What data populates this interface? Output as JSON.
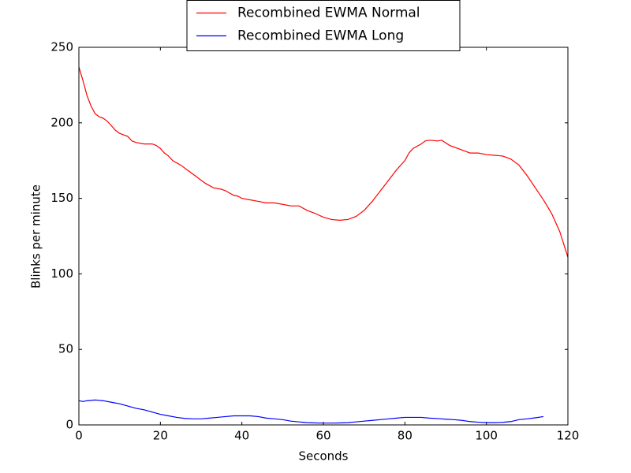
{
  "chart_data": {
    "type": "line",
    "xlabel": "Seconds",
    "ylabel": "Blinks per minute",
    "xlim": [
      0,
      120
    ],
    "ylim": [
      0,
      250
    ],
    "xticks": [
      0,
      20,
      40,
      60,
      80,
      100,
      120
    ],
    "yticks": [
      0,
      50,
      100,
      150,
      200,
      250
    ],
    "legend": "upper center",
    "series": [
      {
        "name": "Recombined EWMA Normal",
        "color": "#ff0000",
        "x": [
          0,
          1,
          2,
          3,
          4,
          5,
          6,
          7,
          8,
          9,
          10,
          12,
          13,
          14,
          16,
          18,
          19,
          20,
          21,
          22,
          23,
          25,
          27,
          29,
          31,
          33,
          35,
          36,
          38,
          39,
          40,
          42,
          44,
          46,
          48,
          50,
          52,
          54,
          56,
          58,
          60,
          62,
          64,
          66,
          68,
          70,
          72,
          74,
          76,
          78,
          80,
          81,
          82,
          84,
          85,
          86,
          88,
          89,
          91,
          93,
          95,
          96,
          98,
          100,
          102,
          104,
          106,
          108,
          110,
          112,
          114,
          116,
          118,
          120
        ],
        "values": [
          237,
          228,
          218,
          211,
          206,
          204,
          203,
          201,
          198,
          195,
          193,
          191,
          188,
          187,
          186,
          186,
          185,
          183,
          180,
          178,
          175,
          172,
          168,
          164,
          160,
          157,
          156,
          155,
          152,
          151.5,
          150,
          149,
          148,
          147,
          147,
          146,
          145,
          145,
          142,
          140,
          137.5,
          136,
          135.5,
          136,
          138,
          142,
          148,
          155,
          162,
          169,
          175,
          180,
          183,
          186,
          188,
          188.5,
          188,
          188.5,
          185,
          183,
          181,
          180,
          180,
          179,
          178.5,
          178,
          176,
          172,
          165,
          157,
          149,
          140,
          128,
          111
        ]
      },
      {
        "name": "Recombined EWMA Long",
        "color": "#0000ff",
        "x": [
          0,
          1,
          2,
          4,
          6,
          8,
          10,
          12,
          14,
          16,
          18,
          20,
          22,
          24,
          26,
          28,
          30,
          32,
          34,
          36,
          38,
          40,
          42,
          44,
          46,
          48,
          50,
          52,
          54,
          56,
          58,
          60,
          62,
          64,
          66,
          68,
          70,
          72,
          74,
          76,
          78,
          80,
          82,
          84,
          86,
          88,
          90,
          92,
          94,
          96,
          98,
          100,
          102,
          104,
          106,
          108,
          110,
          112,
          114
        ],
        "values": [
          16,
          15.5,
          16,
          16.5,
          16,
          15,
          14,
          12.5,
          11,
          10,
          8.5,
          7,
          6,
          5,
          4.3,
          4,
          4,
          4.5,
          5,
          5.5,
          6,
          6,
          6,
          5.5,
          4.5,
          4,
          3.5,
          2.5,
          2,
          1.5,
          1.3,
          1.2,
          1.2,
          1.3,
          1.5,
          2,
          2.5,
          3,
          3.5,
          4,
          4.5,
          5,
          5,
          5,
          4.5,
          4.2,
          3.8,
          3.5,
          3,
          2.2,
          1.8,
          1.5,
          1.5,
          1.7,
          2.2,
          3.5,
          4,
          4.7,
          5.5
        ]
      }
    ]
  }
}
